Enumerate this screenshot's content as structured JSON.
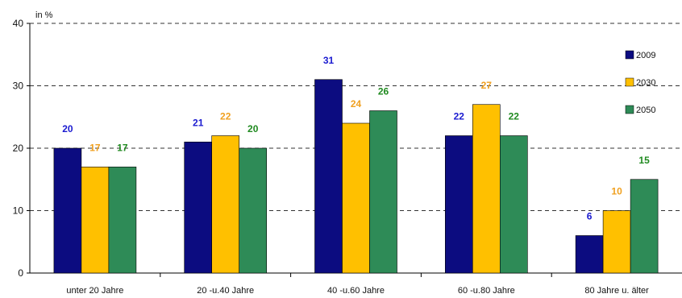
{
  "chart_data": {
    "type": "bar",
    "unit_label": "in %",
    "categories": [
      "unter 20 Jahre",
      "20 -u.40 Jahre",
      "40 -u.60 Jahre",
      "60 -u.80 Jahre",
      "80 Jahre u. älter"
    ],
    "series": [
      {
        "name": "2009",
        "values": [
          20,
          21,
          31,
          22,
          6
        ],
        "color": "#0c0c80",
        "label_color": "#1a1ad0"
      },
      {
        "name": "2030",
        "values": [
          17,
          22,
          24,
          27,
          10
        ],
        "color": "#ffc000",
        "label_color": "#f0a020"
      },
      {
        "name": "2050",
        "values": [
          17,
          20,
          26,
          22,
          15
        ],
        "color": "#2e8b57",
        "label_color": "#208a20"
      }
    ],
    "ylim": [
      0,
      40
    ],
    "yticks": [
      0,
      10,
      20,
      30,
      40
    ],
    "grid": "dashed horizontal",
    "legend_position": "right"
  }
}
